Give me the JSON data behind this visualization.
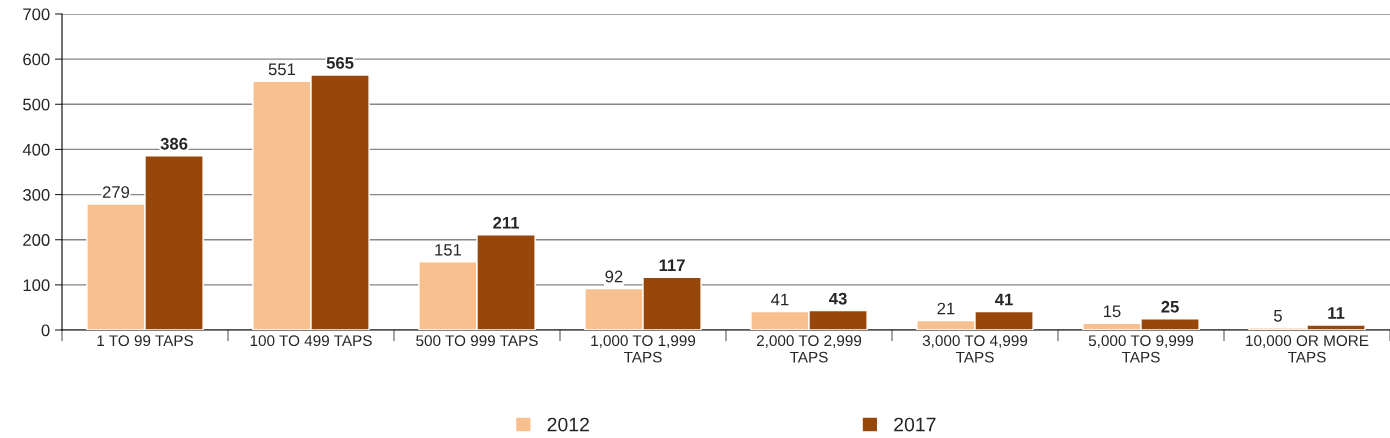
{
  "chart_data": {
    "type": "bar",
    "categories": [
      "1 TO 99 TAPS",
      "100 TO 499 TAPS",
      "500 TO 999 TAPS",
      "1,000 TO 1,999\nTAPS",
      "2,000 TO 2,999\nTAPS",
      "3,000 TO 4,999\nTAPS",
      "5,000 TO 9,999\nTAPS",
      "10,000 OR MORE\nTAPS"
    ],
    "series": [
      {
        "name": "2012",
        "color": "#f9c08f",
        "values": [
          279,
          551,
          151,
          92,
          41,
          21,
          15,
          5
        ]
      },
      {
        "name": "2017",
        "color": "#974709",
        "values": [
          386,
          565,
          211,
          117,
          43,
          41,
          25,
          11
        ]
      }
    ],
    "ylim": [
      0,
      700
    ],
    "yticks": [
      0,
      100,
      200,
      300,
      400,
      500,
      600,
      700
    ],
    "grid": "y",
    "legend": "bottom",
    "data_labels": true
  }
}
